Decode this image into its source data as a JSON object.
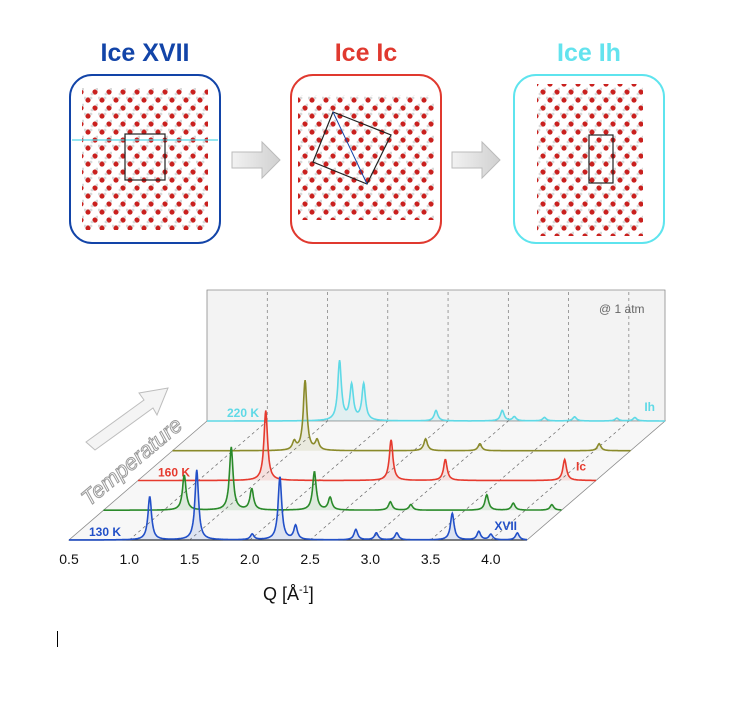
{
  "panels": [
    {
      "title": "Ice XVII",
      "color": "#1244a8",
      "border": "#1244a8"
    },
    {
      "title": "Ice Ic",
      "color": "#e0392f",
      "border": "#e0392f"
    },
    {
      "title": "Ice Ih",
      "color": "#63e3ee",
      "border": "#5ee4ee"
    }
  ],
  "chart_data": {
    "type": "line",
    "title": "",
    "xlabel": "Q [Å⁻¹]",
    "xlabel_main": "Q [Å",
    "xlabel_sup": "-1",
    "xlabel_end": "]",
    "xticks": [
      "0.5",
      "1.0",
      "1.5",
      "2.0",
      "2.5",
      "3.0",
      "3.5",
      "4.0"
    ],
    "xlim": [
      0.5,
      4.3
    ],
    "depth_axis_label": "Temperature",
    "annotation": "@ 1 atm",
    "series": [
      {
        "name": "130 K",
        "temperature_label": "130 K",
        "phase_label": "XVII",
        "color": "#2250c8",
        "peaks": [
          [
            1.17,
            0.62
          ],
          [
            1.56,
            1.0
          ],
          [
            2.02,
            0.08
          ],
          [
            2.25,
            0.9
          ],
          [
            2.38,
            0.2
          ],
          [
            2.88,
            0.15
          ],
          [
            3.05,
            0.1
          ],
          [
            3.22,
            0.1
          ],
          [
            3.68,
            0.38
          ],
          [
            3.9,
            0.12
          ],
          [
            4.0,
            0.08
          ],
          [
            4.22,
            0.1
          ]
        ]
      },
      {
        "name": "",
        "temperature_label": "",
        "phase_label": "",
        "color": "#2a8a2a",
        "peaks": [
          [
            1.17,
            0.5
          ],
          [
            1.56,
            0.9
          ],
          [
            1.73,
            0.3
          ],
          [
            2.25,
            0.55
          ],
          [
            2.38,
            0.18
          ],
          [
            2.88,
            0.12
          ],
          [
            3.05,
            0.08
          ],
          [
            3.68,
            0.22
          ],
          [
            3.9,
            0.1
          ],
          [
            4.22,
            0.08
          ]
        ]
      },
      {
        "name": "160 K",
        "temperature_label": "160 K",
        "phase_label": "Ic",
        "color": "#e63a2e",
        "peaks": [
          [
            1.56,
            1.0
          ],
          [
            2.6,
            0.58
          ],
          [
            3.05,
            0.3
          ],
          [
            4.04,
            0.3
          ]
        ]
      },
      {
        "name": "",
        "temperature_label": "",
        "phase_label": "",
        "color": "#8a8a2a",
        "peaks": [
          [
            1.51,
            0.12
          ],
          [
            1.6,
            1.0
          ],
          [
            1.7,
            0.14
          ],
          [
            2.6,
            0.17
          ],
          [
            3.05,
            0.1
          ],
          [
            4.04,
            0.1
          ]
        ]
      },
      {
        "name": "220 K",
        "temperature_label": "220 K",
        "phase_label": "Ih",
        "color": "#5fd9e6",
        "peaks": [
          [
            1.6,
            0.85
          ],
          [
            1.7,
            0.5
          ],
          [
            1.8,
            0.52
          ],
          [
            2.4,
            0.15
          ],
          [
            2.95,
            0.15
          ],
          [
            3.05,
            0.06
          ],
          [
            3.3,
            0.05
          ],
          [
            3.55,
            0.06
          ],
          [
            3.9,
            0.04
          ],
          [
            4.05,
            0.05
          ]
        ]
      }
    ]
  }
}
